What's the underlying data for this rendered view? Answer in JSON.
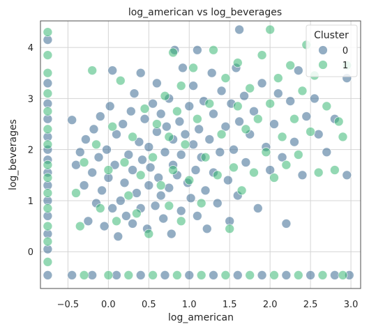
{
  "chart_data": {
    "type": "scatter",
    "title": "log_american vs log_beverages",
    "xlabel": "log_american",
    "ylabel": "log_beverages",
    "xlim": [
      -0.84,
      3.12
    ],
    "ylim": [
      -0.72,
      4.52
    ],
    "xticks": [
      -0.5,
      0.0,
      0.5,
      1.0,
      1.5,
      2.0,
      2.5,
      3.0
    ],
    "xtick_labels": [
      "−0.5",
      "0.0",
      "0.5",
      "1.0",
      "1.5",
      "2.0",
      "2.5",
      "3.0"
    ],
    "yticks": [
      0,
      1,
      2,
      3,
      4
    ],
    "ytick_labels": [
      "0",
      "1",
      "2",
      "3",
      "4"
    ],
    "grid": true,
    "legend": {
      "title": "Cluster",
      "position": "top-right",
      "entries": [
        {
          "label": "0",
          "color": "#3b6a91"
        },
        {
          "label": "1",
          "color": "#3bb874"
        }
      ]
    },
    "series": [
      {
        "name": "0",
        "color": "#3b6a91",
        "points": [
          [
            -0.75,
            -0.46
          ],
          [
            -0.75,
            0.05
          ],
          [
            -0.75,
            0.35
          ],
          [
            -0.75,
            0.7
          ],
          [
            -0.75,
            1.0
          ],
          [
            -0.75,
            1.3
          ],
          [
            -0.75,
            1.55
          ],
          [
            -0.75,
            1.8
          ],
          [
            -0.75,
            2.0
          ],
          [
            -0.75,
            2.25
          ],
          [
            -0.75,
            2.6
          ],
          [
            -0.75,
            2.9
          ],
          [
            -0.75,
            3.3
          ],
          [
            -0.75,
            4.15
          ],
          [
            -0.45,
            2.58
          ],
          [
            -0.4,
            1.7
          ],
          [
            -0.35,
            1.95
          ],
          [
            -0.3,
            1.3
          ],
          [
            -0.28,
            2.2
          ],
          [
            -0.25,
            0.6
          ],
          [
            -0.2,
            1.55
          ],
          [
            -0.18,
            2.4
          ],
          [
            -0.15,
            0.95
          ],
          [
            -0.12,
            1.85
          ],
          [
            -0.1,
            2.65
          ],
          [
            -0.08,
            1.2
          ],
          [
            -0.05,
            0.5
          ],
          [
            -0.02,
            2.0
          ],
          [
            0.0,
            1.45
          ],
          [
            0.02,
            2.85
          ],
          [
            0.05,
            0.85
          ],
          [
            0.05,
            3.55
          ],
          [
            0.08,
            1.7
          ],
          [
            0.1,
            2.3
          ],
          [
            0.12,
            0.3
          ],
          [
            0.15,
            1.0
          ],
          [
            0.18,
            2.5
          ],
          [
            0.2,
            1.35
          ],
          [
            0.22,
            0.7
          ],
          [
            0.25,
            1.9
          ],
          [
            0.28,
            2.75
          ],
          [
            0.3,
            0.55
          ],
          [
            0.3,
            1.6
          ],
          [
            0.32,
            3.1
          ],
          [
            0.35,
            1.15
          ],
          [
            0.38,
            2.15
          ],
          [
            0.4,
            0.85
          ],
          [
            0.4,
            3.5
          ],
          [
            0.42,
            1.8
          ],
          [
            0.45,
            2.6
          ],
          [
            0.48,
            0.45
          ],
          [
            0.5,
            1.3
          ],
          [
            0.5,
            2.05
          ],
          [
            0.52,
            1.65
          ],
          [
            0.55,
            2.9
          ],
          [
            0.58,
            0.9
          ],
          [
            0.6,
            2.35
          ],
          [
            0.6,
            3.3
          ],
          [
            0.62,
            1.45
          ],
          [
            0.65,
            1.1
          ],
          [
            0.65,
            2.7
          ],
          [
            0.68,
            0.65
          ],
          [
            0.7,
            1.95
          ],
          [
            0.72,
            2.45
          ],
          [
            0.75,
            1.25
          ],
          [
            0.75,
            3.0
          ],
          [
            0.78,
            0.35
          ],
          [
            0.8,
            1.7
          ],
          [
            0.8,
            2.2
          ],
          [
            0.82,
            3.95
          ],
          [
            0.85,
            1.5
          ],
          [
            0.88,
            2.55
          ],
          [
            0.9,
            0.8
          ],
          [
            0.9,
            1.9
          ],
          [
            0.92,
            3.6
          ],
          [
            0.95,
            2.3
          ],
          [
            0.98,
            1.35
          ],
          [
            1.0,
            2.85
          ],
          [
            1.02,
            1.05
          ],
          [
            1.05,
            2.1
          ],
          [
            1.05,
            3.25
          ],
          [
            1.08,
            1.6
          ],
          [
            1.1,
            0.7
          ],
          [
            1.1,
            3.95
          ],
          [
            1.12,
            2.4
          ],
          [
            1.15,
            1.85
          ],
          [
            1.18,
            2.95
          ],
          [
            1.2,
            1.2
          ],
          [
            1.22,
            0.45
          ],
          [
            1.25,
            2.2
          ],
          [
            1.28,
            3.5
          ],
          [
            1.3,
            1.55
          ],
          [
            1.3,
            2.7
          ],
          [
            1.35,
            0.95
          ],
          [
            1.38,
            1.95
          ],
          [
            1.4,
            3.15
          ],
          [
            1.45,
            2.45
          ],
          [
            1.48,
            1.4
          ],
          [
            1.5,
            0.6
          ],
          [
            1.52,
            2.9
          ],
          [
            1.55,
            2.0
          ],
          [
            1.58,
            3.6
          ],
          [
            1.6,
            1.1
          ],
          [
            1.62,
            2.55
          ],
          [
            1.62,
            4.35
          ],
          [
            1.68,
            3.05
          ],
          [
            1.7,
            1.75
          ],
          [
            1.75,
            2.3
          ],
          [
            1.8,
            2.75
          ],
          [
            1.85,
            0.85
          ],
          [
            1.9,
            3.3
          ],
          [
            1.95,
            2.05
          ],
          [
            2.0,
            1.6
          ],
          [
            2.05,
            2.5
          ],
          [
            2.1,
            3.1
          ],
          [
            2.15,
            1.85
          ],
          [
            2.2,
            0.55
          ],
          [
            2.25,
            2.95
          ],
          [
            2.3,
            2.15
          ],
          [
            2.35,
            3.55
          ],
          [
            2.4,
            1.5
          ],
          [
            2.45,
            2.65
          ],
          [
            2.55,
            3.0
          ],
          [
            2.6,
            2.3
          ],
          [
            2.7,
            1.95
          ],
          [
            2.8,
            2.6
          ],
          [
            2.95,
            3.4
          ],
          [
            2.95,
            1.5
          ],
          [
            -0.45,
            -0.46
          ],
          [
            -0.2,
            -0.46
          ],
          [
            0.1,
            -0.46
          ],
          [
            0.4,
            -0.46
          ],
          [
            0.7,
            -0.46
          ],
          [
            1.0,
            -0.46
          ],
          [
            1.3,
            -0.46
          ],
          [
            1.6,
            -0.46
          ],
          [
            1.9,
            -0.46
          ],
          [
            2.2,
            -0.46
          ],
          [
            2.5,
            -0.46
          ],
          [
            2.8,
            -0.46
          ],
          [
            2.98,
            -0.46
          ]
        ]
      },
      {
        "name": "1",
        "color": "#3bb874",
        "points": [
          [
            -0.75,
            -0.2
          ],
          [
            -0.75,
            0.2
          ],
          [
            -0.75,
            0.5
          ],
          [
            -0.75,
            0.85
          ],
          [
            -0.75,
            1.15
          ],
          [
            -0.75,
            1.45
          ],
          [
            -0.75,
            1.7
          ],
          [
            -0.75,
            2.1
          ],
          [
            -0.75,
            2.4
          ],
          [
            -0.75,
            2.75
          ],
          [
            -0.75,
            3.1
          ],
          [
            -0.75,
            3.5
          ],
          [
            -0.75,
            3.85
          ],
          [
            -0.75,
            4.3
          ],
          [
            -0.4,
            1.15
          ],
          [
            -0.35,
            0.5
          ],
          [
            -0.3,
            1.75
          ],
          [
            -0.2,
            3.55
          ],
          [
            -0.15,
            2.1
          ],
          [
            -0.1,
            0.85
          ],
          [
            0.0,
            1.6
          ],
          [
            0.05,
            2.45
          ],
          [
            0.1,
            0.6
          ],
          [
            0.15,
            3.35
          ],
          [
            0.2,
            1.75
          ],
          [
            0.25,
            1.1
          ],
          [
            0.3,
            2.25
          ],
          [
            0.35,
            0.75
          ],
          [
            0.4,
            1.5
          ],
          [
            0.45,
            2.8
          ],
          [
            0.5,
            0.35
          ],
          [
            0.55,
            1.85
          ],
          [
            0.6,
            2.5
          ],
          [
            0.65,
            1.3
          ],
          [
            0.7,
            3.05
          ],
          [
            0.75,
            0.9
          ],
          [
            0.75,
            2.25
          ],
          [
            0.8,
            1.6
          ],
          [
            0.8,
            3.9
          ],
          [
            0.85,
            2.75
          ],
          [
            0.9,
            0.6
          ],
          [
            0.9,
            3.25
          ],
          [
            0.95,
            2.1
          ],
          [
            1.0,
            1.4
          ],
          [
            1.05,
            3.6
          ],
          [
            1.1,
            2.6
          ],
          [
            1.15,
            0.95
          ],
          [
            1.2,
            1.85
          ],
          [
            1.25,
            2.9
          ],
          [
            1.3,
            3.95
          ],
          [
            1.35,
            1.5
          ],
          [
            1.4,
            2.3
          ],
          [
            1.45,
            3.4
          ],
          [
            1.5,
            0.45
          ],
          [
            1.55,
            1.65
          ],
          [
            1.6,
            2.85
          ],
          [
            1.6,
            3.7
          ],
          [
            1.65,
            1.2
          ],
          [
            1.7,
            2.4
          ],
          [
            1.75,
            3.2
          ],
          [
            1.8,
            1.55
          ],
          [
            1.85,
            2.6
          ],
          [
            1.9,
            3.85
          ],
          [
            1.95,
            1.95
          ],
          [
            2.0,
            2.9
          ],
          [
            2.0,
            4.35
          ],
          [
            2.05,
            1.45
          ],
          [
            2.1,
            3.4
          ],
          [
            2.15,
            2.25
          ],
          [
            2.2,
            1.7
          ],
          [
            2.25,
            3.65
          ],
          [
            2.3,
            2.6
          ],
          [
            2.35,
            1.9
          ],
          [
            2.4,
            3.15
          ],
          [
            2.45,
            4.05
          ],
          [
            2.5,
            2.35
          ],
          [
            2.55,
            3.45
          ],
          [
            2.6,
            1.55
          ],
          [
            2.7,
            2.85
          ],
          [
            2.8,
            1.6
          ],
          [
            2.85,
            2.55
          ],
          [
            2.9,
            2.25
          ],
          [
            2.95,
            3.65
          ],
          [
            -0.3,
            -0.46
          ],
          [
            0.0,
            -0.46
          ],
          [
            0.25,
            -0.46
          ],
          [
            0.55,
            -0.46
          ],
          [
            0.85,
            -0.46
          ],
          [
            1.15,
            -0.46
          ],
          [
            1.45,
            -0.46
          ],
          [
            1.75,
            -0.46
          ],
          [
            2.05,
            -0.46
          ],
          [
            2.35,
            -0.46
          ],
          [
            2.65,
            -0.46
          ],
          [
            2.9,
            -0.46
          ]
        ]
      }
    ]
  }
}
